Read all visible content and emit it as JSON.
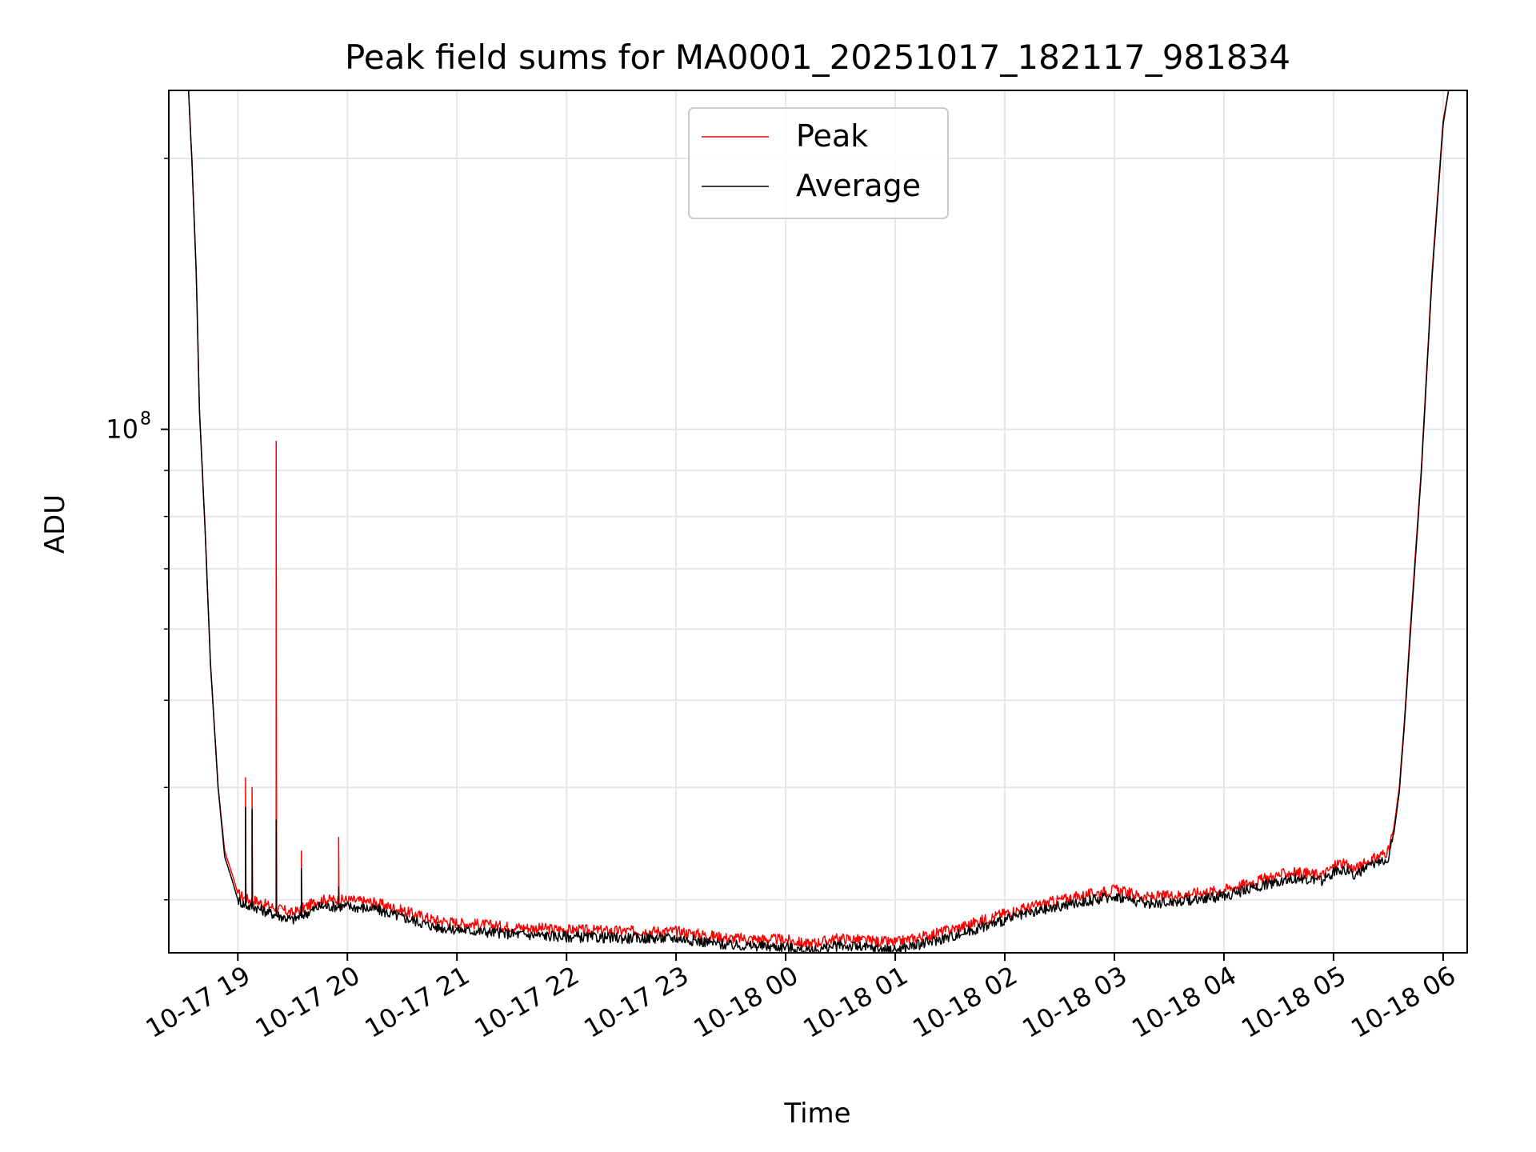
{
  "chart_data": {
    "type": "line",
    "title": "Peak field sums for MA0001_20251017_182117_981834",
    "xlabel": "Time",
    "ylabel": "ADU",
    "yscale": "log",
    "ylim": [
      26200000,
      238000000
    ],
    "xlim": [
      -0.63,
      11.22
    ],
    "x_unit": "hours since 10-17 19:00",
    "grid": true,
    "legend_position": "upper center",
    "x_tick_labels": [
      "10-17 19",
      "10-17 20",
      "10-17 21",
      "10-17 22",
      "10-17 23",
      "10-18 00",
      "10-18 01",
      "10-18 02",
      "10-18 03",
      "10-18 04",
      "10-18 05",
      "10-18 06"
    ],
    "x_ticks": [
      0,
      1,
      2,
      3,
      4,
      5,
      6,
      7,
      8,
      9,
      10,
      11
    ],
    "y_major_tick_value": 100000000,
    "y_major_tick_label_base": "10",
    "y_major_tick_label_exp": "8",
    "y_minor_ticks": [
      30000000,
      40000000,
      50000000,
      60000000,
      70000000,
      80000000,
      90000000,
      200000000
    ],
    "series": [
      {
        "name": "Peak",
        "color": "#ff0000",
        "x": [
          -0.63,
          -0.45,
          -0.42,
          -0.38,
          -0.35,
          -0.3,
          -0.25,
          -0.18,
          -0.12,
          -0.05,
          0.0,
          0.05,
          0.1,
          0.15,
          0.2,
          0.3,
          0.5,
          0.75,
          1.0,
          1.25,
          1.5,
          1.8,
          2.0,
          2.5,
          3.0,
          3.5,
          4.0,
          4.3,
          4.5,
          5.0,
          5.2,
          5.5,
          5.8,
          6.0,
          6.3,
          6.6,
          7.0,
          7.5,
          8.0,
          8.3,
          8.6,
          9.0,
          9.3,
          9.6,
          9.9,
          10.05,
          10.2,
          10.4,
          10.5,
          10.55,
          10.6,
          10.65,
          10.7,
          10.8,
          10.9,
          11.0,
          11.05,
          11.22
        ],
        "y": [
          238000000,
          238000000,
          200000000,
          150000000,
          105000000,
          78000000,
          55000000,
          40000000,
          34000000,
          32000000,
          30500000,
          30200000,
          30000000,
          30000000,
          29800000,
          29500000,
          29000000,
          30000000,
          30000000,
          29800000,
          29200000,
          28500000,
          28300000,
          28000000,
          27800000,
          27700000,
          27700000,
          27400000,
          27200000,
          27100000,
          26800000,
          27200000,
          27000000,
          26900000,
          27400000,
          28000000,
          29000000,
          30000000,
          30800000,
          30200000,
          30400000,
          30800000,
          31500000,
          32200000,
          32000000,
          33000000,
          32500000,
          33500000,
          34000000,
          36000000,
          40000000,
          48000000,
          60000000,
          90000000,
          150000000,
          220000000,
          238000000,
          238000000
        ],
        "spikes": [
          {
            "x": 0.07,
            "y": 41000000
          },
          {
            "x": 0.13,
            "y": 40000000
          },
          {
            "x": 0.35,
            "y": 97000000
          },
          {
            "x": 0.58,
            "y": 34000000
          },
          {
            "x": 0.92,
            "y": 35200000
          }
        ]
      },
      {
        "name": "Average",
        "color": "#000000",
        "x": [
          -0.63,
          -0.45,
          -0.42,
          -0.38,
          -0.35,
          -0.3,
          -0.25,
          -0.18,
          -0.12,
          -0.05,
          0.0,
          0.05,
          0.1,
          0.15,
          0.2,
          0.3,
          0.5,
          0.75,
          1.0,
          1.25,
          1.5,
          1.8,
          2.0,
          2.5,
          3.0,
          3.5,
          4.0,
          4.3,
          4.5,
          5.0,
          5.2,
          5.5,
          5.8,
          6.0,
          6.3,
          6.6,
          7.0,
          7.5,
          8.0,
          8.3,
          8.6,
          9.0,
          9.3,
          9.6,
          9.9,
          10.05,
          10.2,
          10.4,
          10.5,
          10.55,
          10.6,
          10.65,
          10.7,
          10.8,
          10.9,
          11.0,
          11.05,
          11.22
        ],
        "y": [
          238000000,
          238000000,
          200000000,
          150000000,
          105000000,
          78000000,
          55000000,
          40000000,
          33500000,
          31500000,
          30000000,
          29700000,
          29500000,
          29500000,
          29300000,
          29000000,
          28500000,
          29500000,
          29500000,
          29300000,
          28700000,
          28000000,
          27800000,
          27500000,
          27300000,
          27200000,
          27200000,
          26900000,
          26700000,
          26600000,
          26300000,
          26700000,
          26500000,
          26400000,
          26900000,
          27500000,
          28500000,
          29500000,
          30300000,
          29700000,
          29900000,
          30300000,
          31000000,
          31700000,
          31500000,
          32500000,
          32000000,
          33000000,
          33500000,
          35500000,
          39500000,
          47500000,
          59000000,
          89000000,
          148000000,
          218000000,
          238000000,
          238000000
        ],
        "spikes": [
          {
            "x": 0.07,
            "y": 38000000
          },
          {
            "x": 0.13,
            "y": 37800000
          },
          {
            "x": 0.35,
            "y": 36800000
          },
          {
            "x": 0.58,
            "y": 32500000
          },
          {
            "x": 0.92,
            "y": 31000000
          }
        ]
      }
    ]
  }
}
